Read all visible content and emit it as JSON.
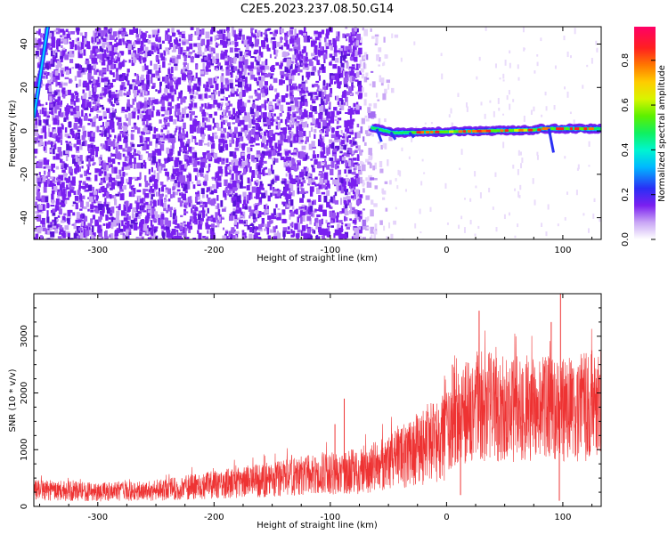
{
  "figure": {
    "title": "C2E5.2023.237.08.50.G14"
  },
  "chart_data": [
    {
      "type": "heatmap",
      "name": "spectrogram",
      "xlabel": "Height of straight line (km)",
      "ylabel": "Frequency (Hz)",
      "xlim": [
        -355,
        133
      ],
      "ylim": [
        -50,
        48
      ],
      "xticks": [
        -300,
        -200,
        -100,
        0,
        100
      ],
      "xtick_labels": [
        "-300",
        "-200",
        "-100",
        "0",
        "100"
      ],
      "yticks": [
        -40,
        -20,
        0,
        20,
        40
      ],
      "ytick_labels": [
        "-40",
        "-20",
        "0",
        "20",
        "40"
      ],
      "colorbar": {
        "label": "Normalized spectral amplitude",
        "range": [
          0,
          0.95
        ],
        "ticks": [
          0.0,
          0.2,
          0.4,
          0.6,
          0.8
        ],
        "tick_labels": [
          "0.0",
          "0.2",
          "0.4",
          "0.6",
          "0.8"
        ],
        "colormap": "rainbow (white-purple-blue-cyan-green-yellow-orange-red-magenta)"
      },
      "features": {
        "noise_region_x": [
          -355,
          -50
        ],
        "carrier_line_x": [
          -65,
          133
        ],
        "carrier_line_freq": [
          -3,
          2
        ],
        "carrier_peak_amplitude": 0.85,
        "early_signal_x": [
          -355,
          -343
        ],
        "early_signal_freq": [
          6,
          48
        ]
      }
    },
    {
      "type": "line",
      "name": "snr",
      "xlabel": "Height of straight line (km)",
      "ylabel": "SNR (10 * v/v)",
      "xlim": [
        -355,
        133
      ],
      "ylim": [
        0,
        3750
      ],
      "xticks": [
        -300,
        -200,
        -100,
        0,
        100
      ],
      "xtick_labels": [
        "-300",
        "-200",
        "-100",
        "0",
        "100"
      ],
      "yticks": [
        0,
        1000,
        2000,
        3000
      ],
      "ytick_labels": [
        "0",
        "1000",
        "2000",
        "3000"
      ],
      "color": "#ee3333",
      "trend_points": {
        "x": [
          -355,
          -300,
          -250,
          -200,
          -150,
          -100,
          -75,
          -50,
          -25,
          0,
          15,
          25,
          50,
          75,
          100,
          133
        ],
        "y": [
          300,
          250,
          280,
          380,
          480,
          600,
          620,
          750,
          1000,
          1300,
          1650,
          1800,
          1700,
          1750,
          1700,
          1800
        ]
      },
      "spikes": [
        {
          "x": -88,
          "y": 1900
        },
        {
          "x": 28,
          "y": 3450
        },
        {
          "x": 98,
          "y": 3750
        },
        {
          "x": 90,
          "y": 3250
        },
        {
          "x": -96,
          "y": 1450
        },
        {
          "x": 5,
          "y": 2500
        }
      ],
      "dips": [
        {
          "x": 97,
          "y": 100
        },
        {
          "x": 12,
          "y": 200
        }
      ]
    }
  ]
}
